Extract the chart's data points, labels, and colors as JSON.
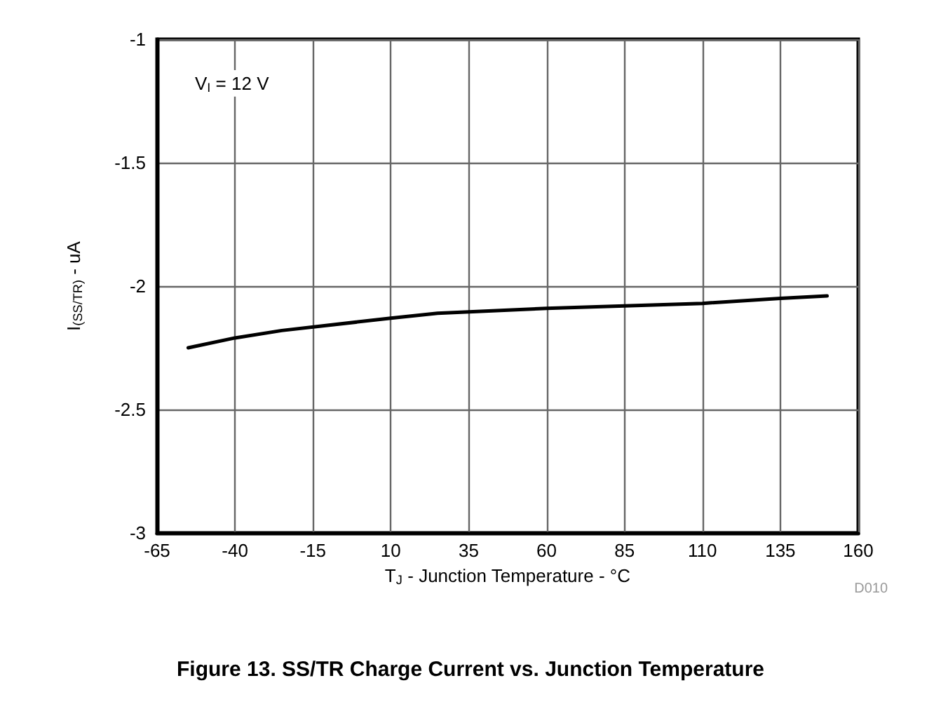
{
  "chart_data": {
    "type": "line",
    "title": "Figure 13. SS/TR Charge Current vs. Junction Temperature",
    "xlabel": "T$_{J}$ - Junction Temperature - °C",
    "ylabel": "I$_{(SS/TR)}$ - uA",
    "annotations": [
      "V$_{I}$ = 12 V",
      "D010"
    ],
    "x": [
      -55,
      -40,
      -25,
      10,
      25,
      60,
      85,
      110,
      135,
      150
    ],
    "series": [
      {
        "color": "#000000",
        "values": [
          -2.25,
          -2.21,
          -2.18,
          -2.13,
          -2.11,
          -2.09,
          -2.08,
          -2.07,
          -2.05,
          -2.04
        ]
      }
    ],
    "xlim": [
      -65,
      160
    ],
    "xticks": [
      -65,
      -40,
      -15,
      10,
      35,
      60,
      85,
      110,
      135,
      160
    ],
    "ylim": [
      -3,
      -1
    ],
    "yticks": [
      -3,
      -2.5,
      -2,
      -1.5,
      -1
    ],
    "grid": true,
    "marker": "none",
    "line_style": "solid"
  }
}
